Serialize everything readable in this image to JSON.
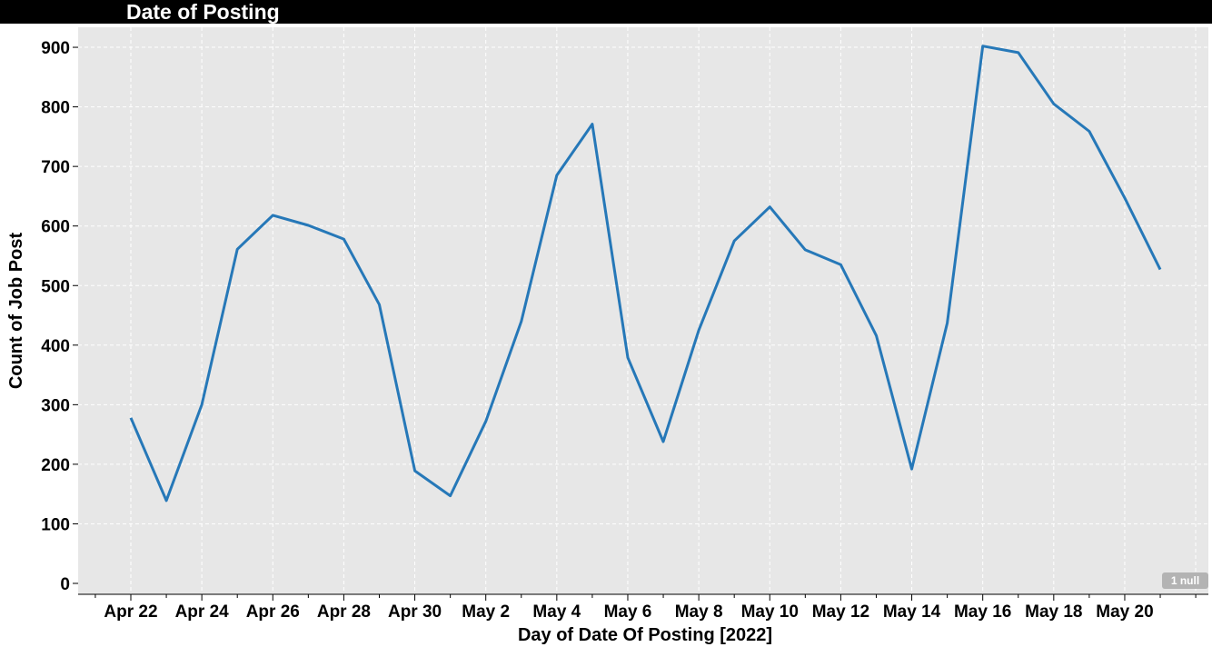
{
  "header": {
    "title": "Date of Posting"
  },
  "null_badge": "1 null",
  "colors": {
    "line": "#2678b8",
    "plot_background": "#e7e7e7",
    "grid": "#ffffff",
    "title_bar": "#000000"
  },
  "chart_data": {
    "type": "line",
    "title": "Date of Posting",
    "xlabel": "Day of Date Of Posting [2022]",
    "ylabel": "Count of Job Post",
    "x": [
      "Apr 22",
      "Apr 23",
      "Apr 24",
      "Apr 25",
      "Apr 26",
      "Apr 27",
      "Apr 28",
      "Apr 29",
      "Apr 30",
      "May 1",
      "May 2",
      "May 3",
      "May 4",
      "May 5",
      "May 6",
      "May 7",
      "May 8",
      "May 9",
      "May 10",
      "May 11",
      "May 12",
      "May 13",
      "May 14",
      "May 15",
      "May 16",
      "May 17",
      "May 18",
      "May 19",
      "May 20",
      "May 21"
    ],
    "series": [
      {
        "values": [
          278,
          139,
          300,
          561,
          618,
          601,
          578,
          468,
          189,
          147,
          272,
          440,
          685,
          771,
          379,
          238,
          425,
          575,
          632,
          560,
          535,
          416,
          192,
          437,
          902,
          891,
          805,
          759,
          647,
          527
        ]
      }
    ],
    "xtick_labels": [
      "Apr 22",
      "Apr 24",
      "Apr 26",
      "Apr 28",
      "Apr 30",
      "May 2",
      "May 4",
      "May 6",
      "May 8",
      "May 10",
      "May 12",
      "May 14",
      "May 16",
      "May 18",
      "May 20"
    ],
    "yticks": [
      0,
      100,
      200,
      300,
      400,
      500,
      600,
      700,
      800,
      900
    ],
    "ylim": [
      0,
      950
    ],
    "grid": true,
    "null_count": 1
  }
}
